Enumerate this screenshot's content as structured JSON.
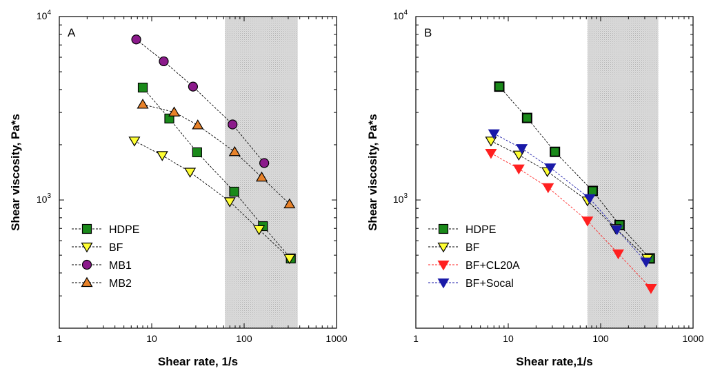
{
  "chart_data": [
    {
      "type": "scatter",
      "panel_label": "A",
      "xlabel": "Shear rate, 1/s",
      "ylabel": "Shear viscosity, Pa*s",
      "x_scale": "log",
      "y_scale": "log",
      "xlim": [
        1,
        1000
      ],
      "ylim": [
        200,
        10000
      ],
      "x_ticks": [
        "1",
        "10",
        "100",
        "1000"
      ],
      "y_ticks": [
        {
          "base": "10",
          "exp": "3"
        },
        {
          "base": "10",
          "exp": "4"
        }
      ],
      "shaded_x_range": [
        62,
        380
      ],
      "shade_color": "#d4d4d4",
      "legend_position": "bottom-left",
      "series": [
        {
          "name": "HDPE",
          "marker": "square",
          "color": "#1a8a1a",
          "x": [
            8,
            15.5,
            31,
            78,
            160,
            320
          ],
          "y": [
            4100,
            2780,
            1820,
            1110,
            720,
            480
          ]
        },
        {
          "name": "BF",
          "marker": "triangle-down",
          "color": "#ffff33",
          "x": [
            6.5,
            13,
            26,
            70,
            145,
            310
          ],
          "y": [
            2100,
            1750,
            1420,
            980,
            690,
            480
          ]
        },
        {
          "name": "MB1",
          "marker": "circle",
          "color": "#8b1a8b",
          "x": [
            6.8,
            13.5,
            28,
            75,
            165
          ],
          "y": [
            7500,
            5700,
            4150,
            2580,
            1590
          ]
        },
        {
          "name": "MB2",
          "marker": "triangle-up",
          "color": "#e8822a",
          "x": [
            8,
            17.5,
            31.5,
            79,
            155,
            310
          ],
          "y": [
            3320,
            3010,
            2560,
            1830,
            1330,
            950
          ]
        }
      ]
    },
    {
      "type": "scatter",
      "panel_label": "B",
      "xlabel": "Shear rate,1/s",
      "ylabel": "Shear viscosity, Pa*s",
      "x_scale": "log",
      "y_scale": "log",
      "xlim": [
        1,
        1000
      ],
      "ylim": [
        200,
        10000
      ],
      "x_ticks": [
        "1",
        "10",
        "100",
        "1000"
      ],
      "y_ticks": [
        {
          "base": "10",
          "exp": "3"
        },
        {
          "base": "10",
          "exp": "4"
        }
      ],
      "shaded_x_range": [
        72,
        420
      ],
      "shade_color": "#d4d4d4",
      "legend_position": "bottom-left",
      "series": [
        {
          "name": "HDPE",
          "marker": "square",
          "color": "#1a8a1a",
          "line_color": "#000000",
          "x": [
            8,
            16,
            32,
            82,
            160,
            340
          ],
          "y": [
            4150,
            2800,
            1830,
            1120,
            730,
            480
          ]
        },
        {
          "name": "BF",
          "marker": "triangle-down",
          "color": "#ffff33",
          "line_color": "#000000",
          "x": [
            6.5,
            13,
            26.5,
            72,
            145,
            320
          ],
          "y": [
            2100,
            1760,
            1430,
            990,
            700,
            480
          ]
        },
        {
          "name": "BF+CL20A",
          "marker": "triangle-down",
          "color": "#ff2020",
          "line_color": "#ff2020",
          "x": [
            6.5,
            13,
            27,
            72,
            155,
            350
          ],
          "y": [
            1800,
            1480,
            1170,
            770,
            510,
            330
          ]
        },
        {
          "name": "BF+Socal",
          "marker": "triangle-down",
          "color": "#1a1aa8",
          "line_color": "#1a1aa8",
          "x": [
            7,
            14,
            28.5,
            76,
            150,
            310
          ],
          "y": [
            2300,
            1910,
            1500,
            1020,
            690,
            460
          ]
        }
      ]
    }
  ]
}
